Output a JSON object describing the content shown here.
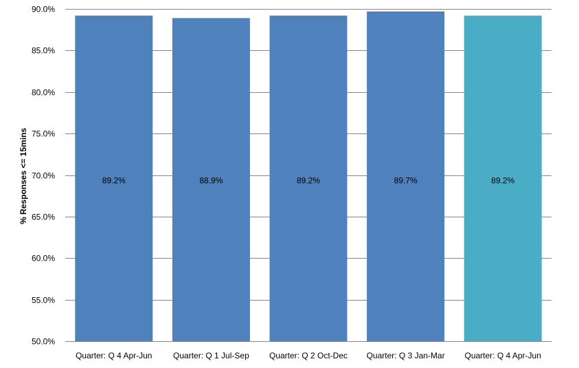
{
  "chart_data": {
    "type": "bar",
    "title": "",
    "xlabel": "",
    "ylabel": "% Responses <= 15mins",
    "categories": [
      "Quarter: Q 4 Apr-Jun",
      "Quarter: Q 1 Jul-Sep",
      "Quarter: Q 2 Oct-Dec",
      "Quarter: Q 3 Jan-Mar",
      "Quarter: Q 4 Apr-Jun"
    ],
    "values": [
      89.2,
      88.9,
      89.2,
      89.7,
      89.2
    ],
    "data_labels": [
      "89.2%",
      "88.9%",
      "89.2%",
      "89.7%",
      "89.2%"
    ],
    "ylim": [
      50,
      90
    ],
    "y_ticks": [
      "50.0%",
      "55.0%",
      "60.0%",
      "65.0%",
      "70.0%",
      "75.0%",
      "80.0%",
      "85.0%",
      "90.0%"
    ],
    "grid": true,
    "bar_colors": [
      "#4F81BD",
      "#4F81BD",
      "#4F81BD",
      "#4F81BD",
      "#4BACC6"
    ]
  }
}
